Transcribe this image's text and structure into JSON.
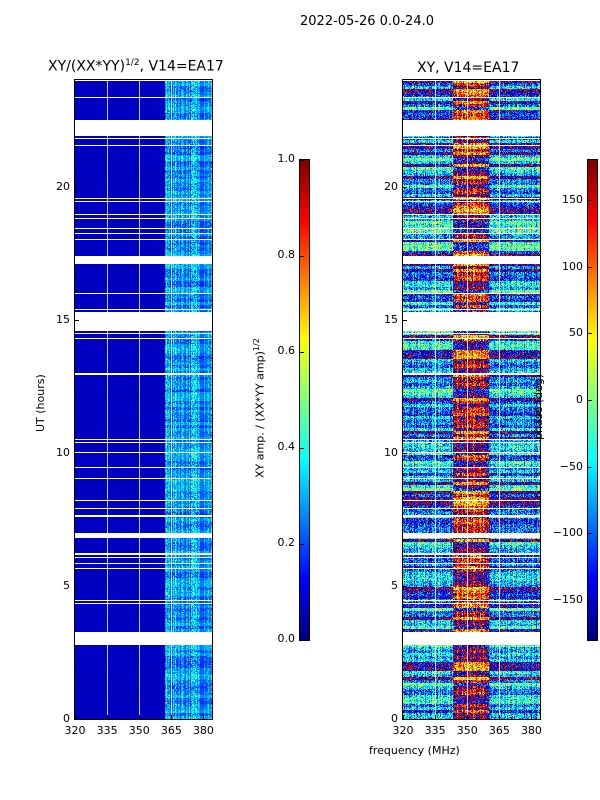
{
  "chart_data": [
    {
      "type": "heatmap",
      "title": "XY/(XX*YY)^1/2, V14=EA17",
      "title_main": "XY/(XX*YY)",
      "title_sup": "1/2",
      "title_rest": ", V14=EA17",
      "xlabel": "",
      "ylabel": "UT (hours)",
      "xlim": [
        320,
        384
      ],
      "ylim": [
        0,
        24
      ],
      "xticks": [
        "320",
        "335",
        "350",
        "365",
        "380"
      ],
      "yticks": [
        "0",
        "5",
        "10",
        "15",
        "20"
      ],
      "colorbar": {
        "label": "XY amp. / (XX*YY amp)",
        "label_sup": "1/2",
        "range": [
          0,
          1
        ],
        "ticks": [
          "0.0",
          "0.2",
          "0.4",
          "0.6",
          "0.8",
          "1.0"
        ]
      },
      "gaps_hours": [
        [
          21.9,
          22.5
        ],
        [
          17.1,
          17.4
        ],
        [
          14.6,
          15.3
        ],
        [
          6.8,
          7.0
        ],
        [
          2.8,
          3.3
        ]
      ],
      "typical_values": {
        "below_362MHz": 0.05,
        "above_362MHz": 0.3
      }
    },
    {
      "type": "heatmap",
      "title": "XY, V14=EA17",
      "xlabel": "frequency (MHz)",
      "ylabel": "",
      "xlim": [
        320,
        384
      ],
      "ylim": [
        0,
        24
      ],
      "xticks": [
        "320",
        "335",
        "350",
        "365",
        "380"
      ],
      "yticks": [
        "0",
        "5",
        "10",
        "15",
        "20"
      ],
      "colorbar": {
        "label": "phase (deg)",
        "range": [
          -180,
          180
        ],
        "ticks": [
          "150",
          "100",
          "50",
          "0",
          "−50",
          "−100",
          "−150"
        ]
      },
      "gaps_hours": [
        [
          21.9,
          22.5
        ],
        [
          17.1,
          17.4
        ],
        [
          14.6,
          15.3
        ],
        [
          6.8,
          7.0
        ],
        [
          2.8,
          3.3
        ]
      ]
    }
  ],
  "suptitle": "2022-05-26 0.0-24.0"
}
